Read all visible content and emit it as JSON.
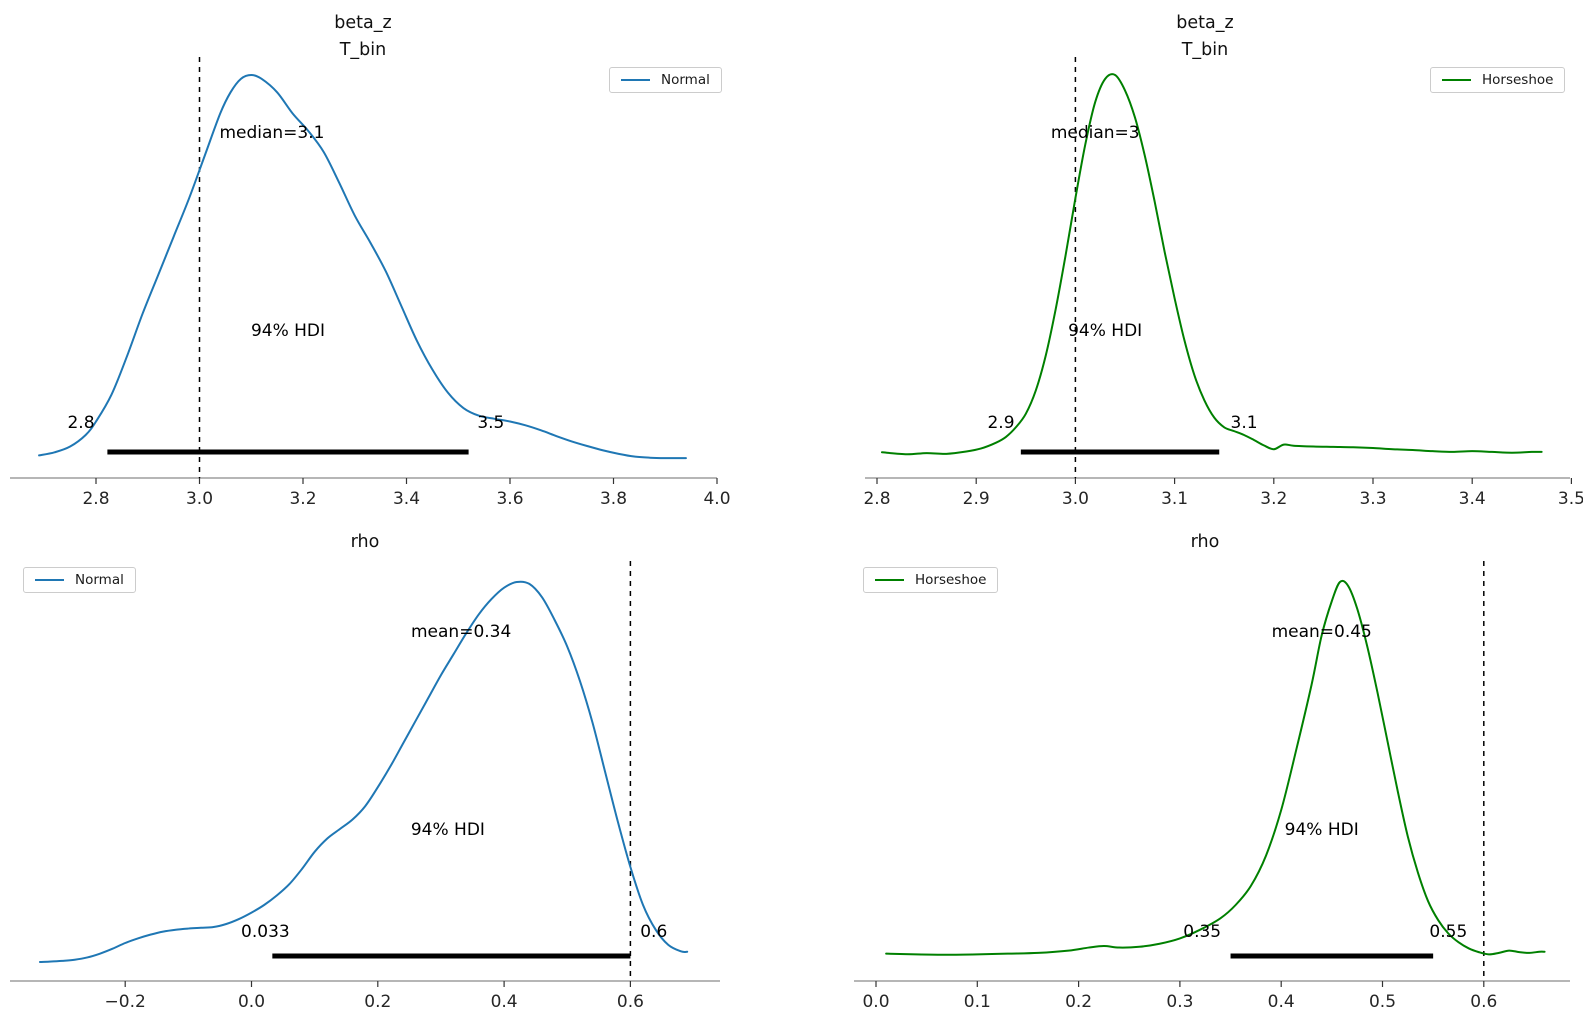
{
  "figure": {
    "background": "#ffffff",
    "axis_color": "#8a8a8a",
    "tick_color": "#333333",
    "tick_label_color": "#262626",
    "annotation_color": "#000000",
    "ref_line_color": "#000000",
    "hdi_bar_color": "#000000"
  },
  "chart_data": [
    {
      "type": "area",
      "kind": "posterior-kde",
      "title_lines": [
        "beta_z",
        "T_bin"
      ],
      "legend": {
        "label": "Normal",
        "color": "#1f77b4",
        "position": "top-right"
      },
      "xlim": [
        2.69,
        4.0
      ],
      "x_ticks": [
        2.8,
        3.0,
        3.2,
        3.4,
        3.6,
        3.8,
        4.0
      ],
      "x_tick_labels": [
        "2.8",
        "3.0",
        "3.2",
        "3.4",
        "3.6",
        "3.8",
        "4.0"
      ],
      "grid": false,
      "ref_line_x": 3.0,
      "point_estimate": {
        "text": "median=3.1",
        "value": 3.1,
        "x": 3.14,
        "y": 0.836
      },
      "hdi": {
        "text": "94% HDI",
        "text_x": 3.171,
        "text_y": 0.322,
        "lo": 2.8,
        "hi": 3.5,
        "lo_label": {
          "text": "2.8",
          "x": 2.771,
          "y": 0.083
        },
        "hi_label": {
          "text": "3.5",
          "x": 3.563,
          "y": 0.083
        },
        "bar_x": [
          2.822,
          3.52
        ]
      },
      "curve": {
        "color": "#1f77b4",
        "x": [
          2.69,
          2.72,
          2.75,
          2.78,
          2.8,
          2.83,
          2.86,
          2.89,
          2.92,
          2.95,
          2.98,
          3.01,
          3.04,
          3.06,
          3.08,
          3.1,
          3.12,
          3.15,
          3.18,
          3.21,
          3.24,
          3.27,
          3.3,
          3.33,
          3.36,
          3.39,
          3.42,
          3.45,
          3.48,
          3.51,
          3.54,
          3.57,
          3.6,
          3.63,
          3.66,
          3.69,
          3.72,
          3.75,
          3.78,
          3.81,
          3.84,
          3.87,
          3.9,
          3.94
        ],
        "density": [
          0.012,
          0.02,
          0.035,
          0.065,
          0.1,
          0.17,
          0.27,
          0.38,
          0.48,
          0.58,
          0.68,
          0.79,
          0.9,
          0.955,
          0.99,
          1.0,
          0.99,
          0.955,
          0.9,
          0.855,
          0.8,
          0.72,
          0.635,
          0.565,
          0.49,
          0.4,
          0.31,
          0.235,
          0.175,
          0.135,
          0.115,
          0.107,
          0.1,
          0.09,
          0.077,
          0.062,
          0.048,
          0.036,
          0.025,
          0.016,
          0.009,
          0.006,
          0.005,
          0.005
        ]
      }
    },
    {
      "type": "area",
      "kind": "posterior-kde",
      "title_lines": [
        "beta_z",
        "T_bin"
      ],
      "legend": {
        "label": "Horseshoe",
        "color": "#008000",
        "position": "top-right"
      },
      "xlim": [
        2.805,
        3.5
      ],
      "x_ticks": [
        2.8,
        2.9,
        3.0,
        3.1,
        3.2,
        3.3,
        3.4,
        3.5
      ],
      "x_tick_labels": [
        "2.8",
        "2.9",
        "3.0",
        "3.1",
        "3.2",
        "3.3",
        "3.4",
        "3.5"
      ],
      "grid": false,
      "ref_line_x": 3.0,
      "point_estimate": {
        "text": "median=3",
        "value": 3,
        "x": 3.02,
        "y": 0.836
      },
      "hdi": {
        "text": "94% HDI",
        "text_x": 3.03,
        "text_y": 0.322,
        "lo": 2.9,
        "hi": 3.1,
        "lo_label": {
          "text": "2.9",
          "x": 2.925,
          "y": 0.083
        },
        "hi_label": {
          "text": "3.1",
          "x": 3.17,
          "y": 0.083
        },
        "bar_x": [
          2.945,
          3.145
        ]
      },
      "curve": {
        "color": "#008000",
        "x": [
          2.805,
          2.83,
          2.85,
          2.87,
          2.89,
          2.905,
          2.92,
          2.93,
          2.94,
          2.95,
          2.96,
          2.97,
          2.98,
          2.99,
          3.0,
          3.01,
          3.02,
          3.03,
          3.04,
          3.05,
          3.06,
          3.07,
          3.08,
          3.09,
          3.1,
          3.11,
          3.12,
          3.13,
          3.14,
          3.15,
          3.16,
          3.17,
          3.18,
          3.19,
          3.2,
          3.21,
          3.22,
          3.24,
          3.26,
          3.28,
          3.3,
          3.32,
          3.34,
          3.36,
          3.38,
          3.4,
          3.42,
          3.44,
          3.46,
          3.47
        ],
        "density": [
          0.02,
          0.015,
          0.018,
          0.016,
          0.022,
          0.03,
          0.045,
          0.06,
          0.085,
          0.12,
          0.18,
          0.27,
          0.39,
          0.53,
          0.68,
          0.82,
          0.93,
          0.99,
          1.0,
          0.96,
          0.89,
          0.79,
          0.67,
          0.54,
          0.42,
          0.31,
          0.22,
          0.155,
          0.11,
          0.085,
          0.075,
          0.065,
          0.052,
          0.038,
          0.028,
          0.04,
          0.037,
          0.035,
          0.034,
          0.033,
          0.031,
          0.028,
          0.026,
          0.023,
          0.021,
          0.023,
          0.021,
          0.019,
          0.021,
          0.021
        ]
      }
    },
    {
      "type": "area",
      "kind": "posterior-kde",
      "title_lines": [
        "rho"
      ],
      "legend": {
        "label": "Normal",
        "color": "#1f77b4",
        "position": "top-left"
      },
      "xlim": [
        -0.335,
        0.69
      ],
      "x_ticks": [
        -0.2,
        0.0,
        0.2,
        0.4,
        0.6
      ],
      "x_tick_labels": [
        "−0.2",
        "0.0",
        "0.2",
        "0.4",
        "0.6"
      ],
      "grid": false,
      "ref_line_x": 0.6,
      "point_estimate": {
        "text": "mean=0.34",
        "value": 0.34,
        "x": 0.332,
        "y": 0.855
      },
      "hdi": {
        "text": "94% HDI",
        "text_x": 0.311,
        "text_y": 0.334,
        "lo": 0.033,
        "hi": 0.6,
        "lo_label": {
          "text": "0.033",
          "x": 0.022,
          "y": 0.066
        },
        "hi_label": {
          "text": "0.6",
          "x": 0.637,
          "y": 0.066
        },
        "bar_x": [
          0.033,
          0.6
        ]
      },
      "curve": {
        "color": "#1f77b4",
        "x": [
          -0.335,
          -0.32,
          -0.3,
          -0.28,
          -0.26,
          -0.24,
          -0.22,
          -0.2,
          -0.18,
          -0.16,
          -0.14,
          -0.12,
          -0.1,
          -0.08,
          -0.06,
          -0.04,
          -0.02,
          0.0,
          0.02,
          0.04,
          0.06,
          0.08,
          0.1,
          0.12,
          0.14,
          0.16,
          0.18,
          0.2,
          0.22,
          0.24,
          0.26,
          0.28,
          0.3,
          0.32,
          0.34,
          0.36,
          0.38,
          0.4,
          0.42,
          0.44,
          0.46,
          0.48,
          0.5,
          0.52,
          0.54,
          0.56,
          0.58,
          0.6,
          0.62,
          0.64,
          0.66,
          0.68,
          0.69
        ],
        "density": [
          0.0,
          0.001,
          0.003,
          0.006,
          0.012,
          0.022,
          0.035,
          0.05,
          0.062,
          0.072,
          0.08,
          0.085,
          0.088,
          0.09,
          0.092,
          0.1,
          0.113,
          0.13,
          0.15,
          0.175,
          0.205,
          0.245,
          0.29,
          0.325,
          0.35,
          0.375,
          0.41,
          0.46,
          0.515,
          0.575,
          0.635,
          0.695,
          0.755,
          0.81,
          0.865,
          0.915,
          0.955,
          0.985,
          1.0,
          0.995,
          0.96,
          0.9,
          0.83,
          0.74,
          0.63,
          0.5,
          0.37,
          0.25,
          0.15,
          0.085,
          0.045,
          0.028,
          0.027
        ]
      }
    },
    {
      "type": "area",
      "kind": "posterior-kde",
      "title_lines": [
        "rho"
      ],
      "legend": {
        "label": "Horseshoe",
        "color": "#008000",
        "position": "top-left"
      },
      "xlim": [
        0.01,
        0.66
      ],
      "x_ticks": [
        0.0,
        0.1,
        0.2,
        0.3,
        0.4,
        0.5,
        0.6
      ],
      "x_tick_labels": [
        "0.0",
        "0.1",
        "0.2",
        "0.3",
        "0.4",
        "0.5",
        "0.6"
      ],
      "grid": false,
      "ref_line_x": 0.6,
      "point_estimate": {
        "text": "mean=0.45",
        "value": 0.45,
        "x": 0.44,
        "y": 0.855
      },
      "hdi": {
        "text": "94% HDI",
        "text_x": 0.44,
        "text_y": 0.334,
        "lo": 0.35,
        "hi": 0.55,
        "lo_label": {
          "text": "0.35",
          "x": 0.322,
          "y": 0.066
        },
        "hi_label": {
          "text": "0.55",
          "x": 0.565,
          "y": 0.066
        },
        "bar_x": [
          0.35,
          0.55
        ]
      },
      "curve": {
        "color": "#008000",
        "x": [
          0.01,
          0.04,
          0.07,
          0.1,
          0.13,
          0.16,
          0.19,
          0.21,
          0.225,
          0.24,
          0.26,
          0.28,
          0.3,
          0.32,
          0.34,
          0.355,
          0.37,
          0.385,
          0.4,
          0.415,
          0.43,
          0.44,
          0.45,
          0.458,
          0.466,
          0.475,
          0.485,
          0.495,
          0.505,
          0.515,
          0.525,
          0.535,
          0.545,
          0.555,
          0.565,
          0.575,
          0.585,
          0.595,
          0.605,
          0.615,
          0.625,
          0.635,
          0.645,
          0.655,
          0.66
        ],
        "density": [
          0.022,
          0.02,
          0.019,
          0.02,
          0.022,
          0.024,
          0.03,
          0.038,
          0.042,
          0.038,
          0.04,
          0.048,
          0.062,
          0.085,
          0.115,
          0.15,
          0.2,
          0.28,
          0.4,
          0.56,
          0.73,
          0.86,
          0.95,
          1.0,
          0.99,
          0.93,
          0.83,
          0.71,
          0.58,
          0.45,
          0.33,
          0.235,
          0.16,
          0.11,
          0.075,
          0.052,
          0.036,
          0.026,
          0.02,
          0.024,
          0.03,
          0.026,
          0.024,
          0.027,
          0.027
        ]
      }
    }
  ]
}
